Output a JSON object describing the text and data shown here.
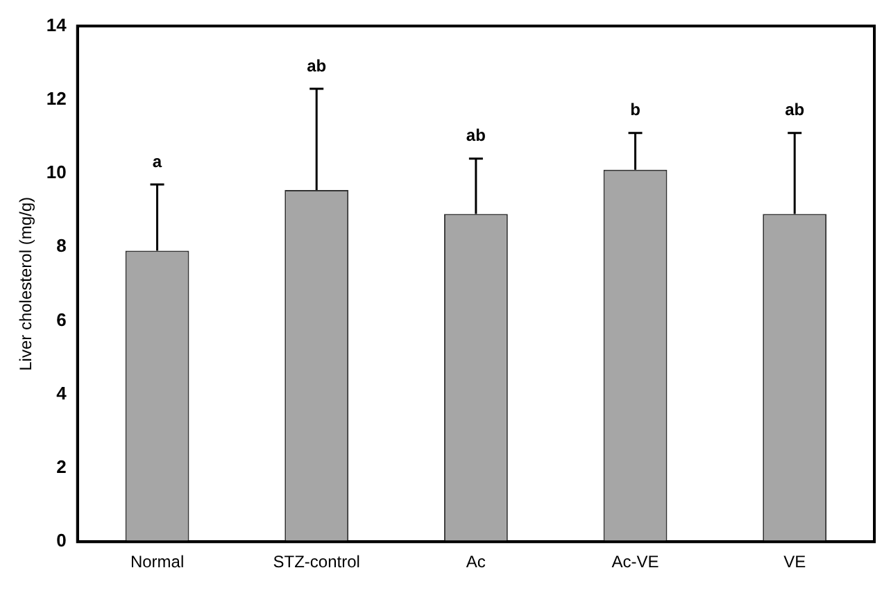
{
  "chart_data": {
    "type": "bar",
    "ylabel": "Liver cholesterol (mg/g)",
    "categories": [
      "Normal",
      "STZ-control",
      "Ac",
      "Ac-VE",
      "VE"
    ],
    "values": [
      7.9,
      9.55,
      8.9,
      10.1,
      8.9
    ],
    "errors": [
      [
        7.9,
        9.7
      ],
      [
        9.55,
        12.3
      ],
      [
        8.9,
        10.4
      ],
      [
        10.1,
        11.1
      ],
      [
        8.9,
        11.1
      ]
    ],
    "color": "#a6a6a6",
    "ylim": [
      0,
      14
    ],
    "yticks": [
      0,
      2,
      4,
      6,
      8,
      10,
      12,
      14
    ],
    "grid": false,
    "legend": false,
    "annotations": [
      "a",
      "ab",
      "ab",
      "b",
      "ab"
    ]
  }
}
